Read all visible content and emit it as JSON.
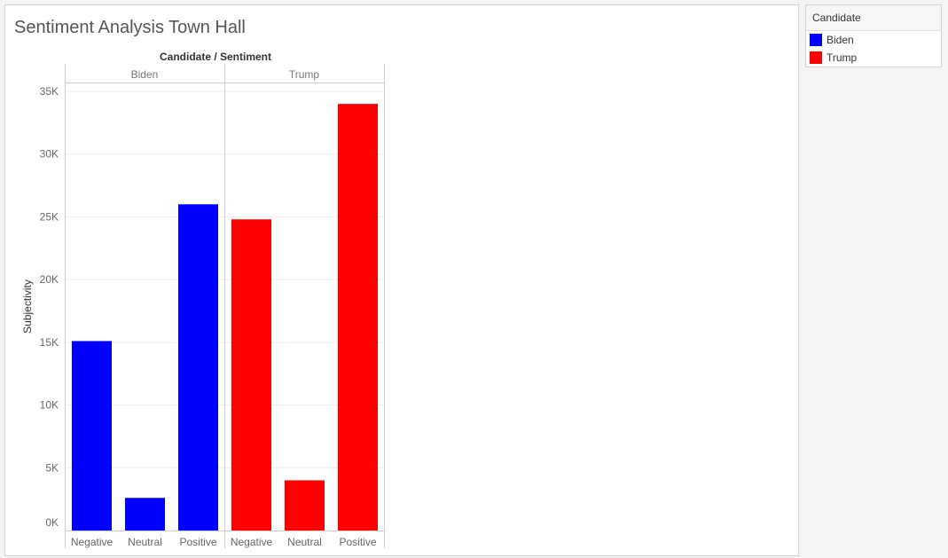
{
  "sheet_title": "Sentiment Analysis Town Hall",
  "colors": {
    "Biden": "#0000ff",
    "Trump": "#ff0000"
  },
  "legend": {
    "title": "Candidate",
    "items": [
      {
        "label": "Biden",
        "color": "#0000ff"
      },
      {
        "label": "Trump",
        "color": "#ff0000"
      }
    ]
  },
  "chart_data": {
    "type": "bar",
    "title": "",
    "header_title": "Candidate / Sentiment",
    "ylabel": "Subjectivity",
    "xlabel": "",
    "ylim": [
      0,
      35000
    ],
    "yticks": [
      0,
      5000,
      10000,
      15000,
      20000,
      25000,
      30000,
      35000
    ],
    "ytick_labels": [
      "0K",
      "5K",
      "10K",
      "15K",
      "20K",
      "25K",
      "30K",
      "35K"
    ],
    "grid": true,
    "legend_position": "top-right",
    "panels": [
      {
        "name": "Biden",
        "color": "#0000ff",
        "categories": [
          "Negative",
          "Neutral",
          "Positive"
        ],
        "values": [
          15100,
          2600,
          26000
        ]
      },
      {
        "name": "Trump",
        "color": "#ff0000",
        "categories": [
          "Negative",
          "Neutral",
          "Positive"
        ],
        "values": [
          24800,
          4000,
          34000
        ]
      }
    ]
  }
}
